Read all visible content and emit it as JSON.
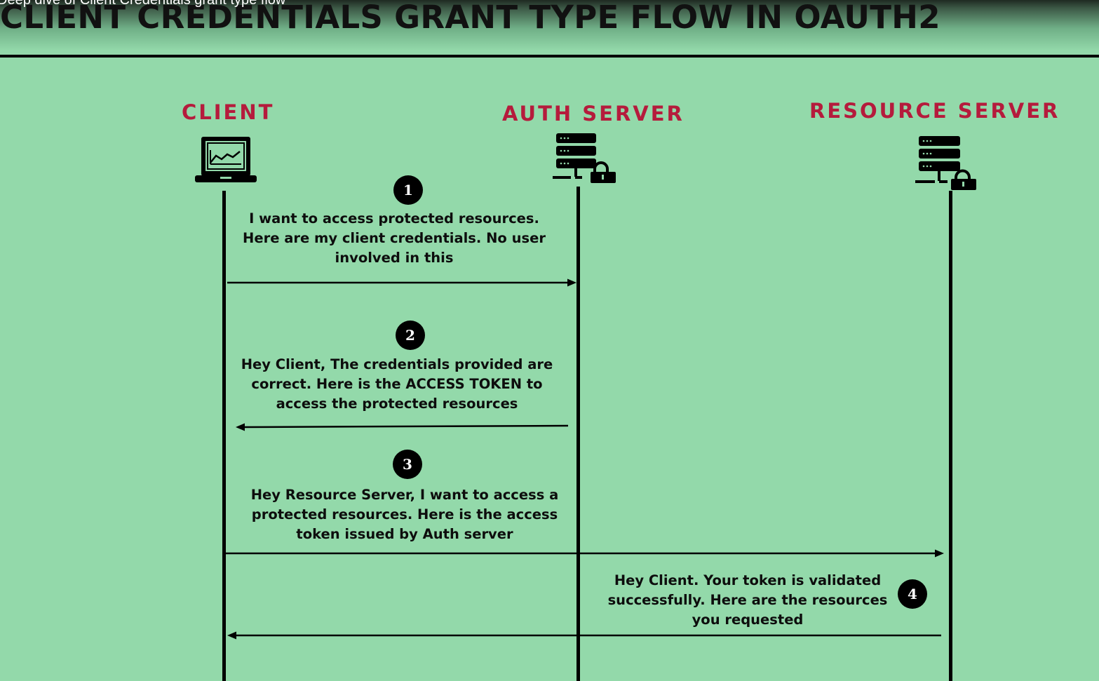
{
  "header": {
    "video_title": "Deep dive of Client Credentials grant type flow",
    "title": "CLIENT CREDENTIALS GRANT TYPE FLOW IN OAUTH2"
  },
  "actors": {
    "client": {
      "label": "CLIENT",
      "icon": "laptop-icon"
    },
    "auth_server": {
      "label": "AUTH SERVER",
      "icon": "server-lock-icon"
    },
    "resource_server": {
      "label": "RESOURCE SERVER",
      "icon": "server-lock-icon"
    }
  },
  "steps": [
    {
      "number": "1",
      "lines": [
        "I want to access protected resources.",
        "Here are my client credentials. No user",
        "involved in this"
      ],
      "from": "client",
      "to": "auth_server"
    },
    {
      "number": "2",
      "lines": [
        "Hey Client, The credentials provided are",
        "correct. Here is the ACCESS TOKEN to",
        "access the protected resources"
      ],
      "from": "auth_server",
      "to": "client"
    },
    {
      "number": "3",
      "lines": [
        "Hey Resource Server,  I want to access a",
        "protected resources. Here is the access",
        "token issued by Auth server"
      ],
      "from": "client",
      "to": "resource_server"
    },
    {
      "number": "4",
      "lines": [
        "Hey Client. Your token is validated",
        "successfully. Here are the resources",
        "you requested"
      ],
      "from": "resource_server",
      "to": "client"
    }
  ],
  "colors": {
    "background": "#93d9aa",
    "actor_label": "#b51b3c",
    "ink": "#000000"
  }
}
